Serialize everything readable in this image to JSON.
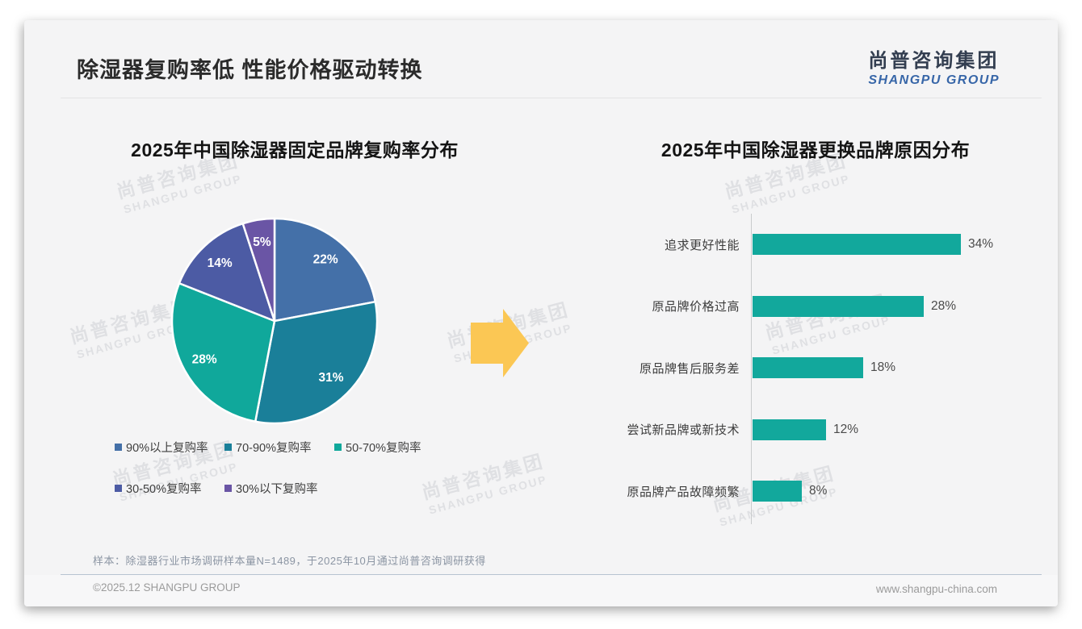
{
  "page": {
    "title": "除湿器复购率低 性能价格驱动转换",
    "logo": {
      "cn": "尚普咨询集团",
      "en": "SHANGPU GROUP"
    },
    "watermark": {
      "cn": "尚普咨询集团",
      "en": "SHANGPU GROUP"
    },
    "sample_note": "样本：除湿器行业市场调研样本量N=1489，于2025年10月通过尚普咨询调研获得",
    "footer": {
      "copyright": "©2025.12 SHANGPU GROUP",
      "website": "www.shangpu-china.com"
    }
  },
  "arrow_color": "#FBC754",
  "chart_data": [
    {
      "type": "pie",
      "title": "2025年中国除湿器固定品牌复购率分布",
      "labels": [
        "90%以上复购率",
        "70-90%复购率",
        "50-70%复购率",
        "30-50%复购率",
        "30%以下复购率"
      ],
      "values": [
        22,
        31,
        28,
        14,
        5
      ],
      "data_labels": [
        "22%",
        "31%",
        "28%",
        "14%",
        "5%"
      ],
      "colors": [
        "#4470A8",
        "#1A7F99",
        "#10A89B",
        "#4C5BA4",
        "#6A55A5"
      ],
      "start_angle_deg": 0,
      "direction": "clockwise",
      "legend_position": "bottom",
      "legend_rows": [
        [
          0,
          1,
          2
        ],
        [
          3,
          4
        ]
      ]
    },
    {
      "type": "bar",
      "title": "2025年中国除湿器更换品牌原因分布",
      "orientation": "horizontal",
      "categories": [
        "追求更好性能",
        "原品牌价格过高",
        "原品牌售后服务差",
        "尝试新品牌或新技术",
        "原品牌产品故障频繁"
      ],
      "values": [
        34,
        28,
        18,
        12,
        8
      ],
      "value_labels": [
        "34%",
        "28%",
        "18%",
        "12%",
        "8%"
      ],
      "bar_color": "#12A89C",
      "xlim": [
        0,
        34
      ],
      "grid": false
    }
  ]
}
